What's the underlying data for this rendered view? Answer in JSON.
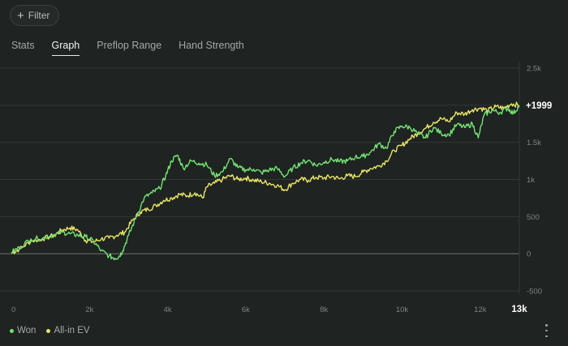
{
  "filter": {
    "icon": "plus-icon",
    "label": "Filter"
  },
  "tabs": [
    {
      "label": "Stats",
      "active": false
    },
    {
      "label": "Graph",
      "active": true
    },
    {
      "label": "Preflop Range",
      "active": false
    },
    {
      "label": "Hand Strength",
      "active": false
    }
  ],
  "colors": {
    "won": "#72e372",
    "allin_ev": "#e8e567",
    "grid": "#333835",
    "zero": "#6e7370",
    "tick": "#7e8380",
    "current": "#ffffff"
  },
  "chart_data": {
    "type": "line",
    "x_ticks": [
      {
        "value": 0,
        "label": "0"
      },
      {
        "value": 2000,
        "label": "2k"
      },
      {
        "value": 4000,
        "label": "4k"
      },
      {
        "value": 6000,
        "label": "6k"
      },
      {
        "value": 8000,
        "label": "8k"
      },
      {
        "value": 10000,
        "label": "10k"
      },
      {
        "value": 12000,
        "label": "12k"
      },
      {
        "value": 13000,
        "label": "13k",
        "highlight": true
      }
    ],
    "y_ticks": [
      {
        "value": 2500,
        "label": "2.5k"
      },
      {
        "value": 2000,
        "label": ""
      },
      {
        "value": 1500,
        "label": "1.5k"
      },
      {
        "value": 1000,
        "label": "1k"
      },
      {
        "value": 500,
        "label": "500"
      },
      {
        "value": 0,
        "label": "0"
      },
      {
        "value": -500,
        "label": "-500"
      }
    ],
    "xlim": [
      0,
      13000
    ],
    "ylim": [
      -500,
      2500
    ],
    "current_label": "+1999",
    "current_value": 1999,
    "series": [
      {
        "name": "Won",
        "color": "#72e372",
        "points": [
          [
            0,
            20
          ],
          [
            200,
            80
          ],
          [
            500,
            200
          ],
          [
            800,
            210
          ],
          [
            1100,
            260
          ],
          [
            1300,
            290
          ],
          [
            1500,
            270
          ],
          [
            1700,
            250
          ],
          [
            1900,
            230
          ],
          [
            2100,
            170
          ],
          [
            2300,
            40
          ],
          [
            2500,
            -30
          ],
          [
            2650,
            -60
          ],
          [
            2750,
            -40
          ],
          [
            2850,
            40
          ],
          [
            3000,
            250
          ],
          [
            3200,
            500
          ],
          [
            3400,
            750
          ],
          [
            3600,
            820
          ],
          [
            3800,
            880
          ],
          [
            3950,
            1050
          ],
          [
            4100,
            1250
          ],
          [
            4250,
            1330
          ],
          [
            4400,
            1150
          ],
          [
            4600,
            1250
          ],
          [
            4800,
            1220
          ],
          [
            5000,
            1200
          ],
          [
            5200,
            1050
          ],
          [
            5400,
            1100
          ],
          [
            5600,
            1280
          ],
          [
            5800,
            1160
          ],
          [
            6000,
            1130
          ],
          [
            6200,
            1140
          ],
          [
            6400,
            1090
          ],
          [
            6600,
            1130
          ],
          [
            6800,
            1150
          ],
          [
            7000,
            1040
          ],
          [
            7200,
            1150
          ],
          [
            7400,
            1220
          ],
          [
            7600,
            1260
          ],
          [
            7800,
            1190
          ],
          [
            8000,
            1230
          ],
          [
            8200,
            1270
          ],
          [
            8400,
            1240
          ],
          [
            8600,
            1250
          ],
          [
            8800,
            1300
          ],
          [
            9000,
            1310
          ],
          [
            9200,
            1370
          ],
          [
            9400,
            1480
          ],
          [
            9600,
            1420
          ],
          [
            9800,
            1650
          ],
          [
            10000,
            1720
          ],
          [
            10200,
            1700
          ],
          [
            10400,
            1620
          ],
          [
            10600,
            1560
          ],
          [
            10800,
            1700
          ],
          [
            11000,
            1620
          ],
          [
            11200,
            1600
          ],
          [
            11400,
            1740
          ],
          [
            11600,
            1700
          ],
          [
            11800,
            1750
          ],
          [
            11950,
            1560
          ],
          [
            12100,
            1870
          ],
          [
            12300,
            1930
          ],
          [
            12500,
            1900
          ],
          [
            12700,
            1960
          ],
          [
            12850,
            1890
          ],
          [
            13000,
            1999
          ]
        ]
      },
      {
        "name": "All-in EV",
        "color": "#e8e567",
        "points": [
          [
            0,
            10
          ],
          [
            200,
            60
          ],
          [
            500,
            170
          ],
          [
            800,
            200
          ],
          [
            1100,
            250
          ],
          [
            1300,
            320
          ],
          [
            1500,
            350
          ],
          [
            1700,
            320
          ],
          [
            1900,
            180
          ],
          [
            2100,
            160
          ],
          [
            2300,
            200
          ],
          [
            2500,
            210
          ],
          [
            2700,
            250
          ],
          [
            2900,
            290
          ],
          [
            3100,
            450
          ],
          [
            3300,
            560
          ],
          [
            3500,
            600
          ],
          [
            3700,
            650
          ],
          [
            3900,
            720
          ],
          [
            4100,
            750
          ],
          [
            4300,
            800
          ],
          [
            4500,
            780
          ],
          [
            4700,
            820
          ],
          [
            4900,
            750
          ],
          [
            5000,
            900
          ],
          [
            5200,
            950
          ],
          [
            5400,
            1000
          ],
          [
            5600,
            1050
          ],
          [
            5800,
            1000
          ],
          [
            6000,
            1020
          ],
          [
            6200,
            990
          ],
          [
            6400,
            970
          ],
          [
            6600,
            950
          ],
          [
            6800,
            920
          ],
          [
            7000,
            860
          ],
          [
            7200,
            950
          ],
          [
            7400,
            1000
          ],
          [
            7600,
            990
          ],
          [
            7800,
            1030
          ],
          [
            8000,
            1020
          ],
          [
            8200,
            1040
          ],
          [
            8400,
            1010
          ],
          [
            8600,
            1050
          ],
          [
            8800,
            1040
          ],
          [
            9000,
            1100
          ],
          [
            9200,
            1150
          ],
          [
            9400,
            1180
          ],
          [
            9600,
            1250
          ],
          [
            9800,
            1390
          ],
          [
            10000,
            1460
          ],
          [
            10200,
            1550
          ],
          [
            10400,
            1620
          ],
          [
            10600,
            1690
          ],
          [
            10800,
            1770
          ],
          [
            11000,
            1820
          ],
          [
            11200,
            1780
          ],
          [
            11400,
            1900
          ],
          [
            11600,
            1880
          ],
          [
            11800,
            1940
          ],
          [
            12000,
            1960
          ],
          [
            12200,
            1930
          ],
          [
            12400,
            1980
          ],
          [
            12600,
            1960
          ],
          [
            12800,
            2020
          ],
          [
            13000,
            1999
          ]
        ]
      }
    ]
  }
}
